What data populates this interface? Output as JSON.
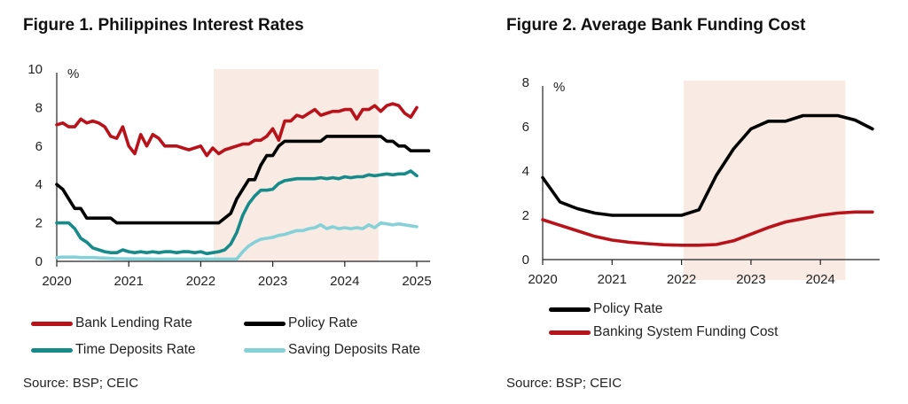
{
  "figures": [
    {
      "title": "Figure 1. Philippines Interest Rates",
      "source": "Source: BSP; CEIC",
      "legend": [
        {
          "label": "Bank Lending Rate",
          "color": "#b8121b"
        },
        {
          "label": "Policy Rate",
          "color": "#000000"
        },
        {
          "label": "Time Deposits Rate",
          "color": "#178a8a"
        },
        {
          "label": "Saving Deposits Rate",
          "color": "#86d1d8"
        }
      ]
    },
    {
      "title": "Figure 2. Average Bank Funding Cost",
      "source": "Source: BSP; CEIC",
      "legend": [
        {
          "label": "Policy Rate",
          "color": "#000000"
        },
        {
          "label": "Banking System Funding Cost",
          "color": "#b8121b"
        }
      ]
    }
  ],
  "chart_data": [
    {
      "type": "line",
      "title": "Figure 1. Philippines Interest Rates",
      "xlabel": "",
      "ylabel": "%",
      "frequency": "monthly",
      "x_start": "2020-01",
      "xlim": [
        2020,
        2025.25
      ],
      "ylim": [
        0,
        10
      ],
      "yticks": [
        0,
        2,
        4,
        6,
        8,
        10
      ],
      "xticks": [
        "2020",
        "2021",
        "2022",
        "2023",
        "2024",
        "2025"
      ],
      "grid": false,
      "legend_position": "bottom",
      "shaded_region": {
        "from": 2022.18,
        "to": 2024.47,
        "color": "#f9ebe3"
      },
      "series": [
        {
          "name": "Bank Lending Rate",
          "color": "#b8121b",
          "values": [
            7.1,
            7.2,
            7.0,
            7.0,
            7.4,
            7.2,
            7.3,
            7.2,
            7.0,
            6.5,
            6.4,
            7.0,
            6.0,
            5.6,
            6.6,
            6.0,
            6.6,
            6.4,
            6.0,
            6.0,
            6.0,
            5.9,
            5.8,
            5.9,
            6.0,
            5.5,
            5.9,
            5.6,
            5.8,
            5.9,
            6.0,
            6.1,
            6.1,
            6.3,
            6.3,
            6.5,
            6.9,
            6.3,
            7.3,
            7.3,
            7.6,
            7.5,
            7.7,
            7.9,
            7.6,
            7.7,
            7.8,
            7.8,
            7.9,
            7.9,
            7.4,
            7.9,
            7.9,
            8.1,
            7.8,
            8.1,
            8.2,
            8.1,
            7.7,
            7.5,
            8.0
          ]
        },
        {
          "name": "Policy Rate",
          "color": "#000000",
          "values": [
            4.0,
            3.75,
            3.25,
            2.75,
            2.75,
            2.25,
            2.25,
            2.25,
            2.25,
            2.25,
            2.0,
            2.0,
            2.0,
            2.0,
            2.0,
            2.0,
            2.0,
            2.0,
            2.0,
            2.0,
            2.0,
            2.0,
            2.0,
            2.0,
            2.0,
            2.0,
            2.0,
            2.0,
            2.25,
            2.5,
            3.25,
            3.75,
            4.25,
            4.25,
            5.0,
            5.5,
            5.5,
            6.0,
            6.25,
            6.25,
            6.25,
            6.25,
            6.25,
            6.25,
            6.25,
            6.5,
            6.5,
            6.5,
            6.5,
            6.5,
            6.5,
            6.5,
            6.5,
            6.5,
            6.5,
            6.25,
            6.25,
            6.0,
            6.0,
            5.75,
            5.75,
            5.75,
            5.75
          ]
        },
        {
          "name": "Time Deposits Rate",
          "color": "#178a8a",
          "values": [
            2.0,
            2.0,
            2.0,
            1.7,
            1.2,
            1.0,
            0.7,
            0.6,
            0.5,
            0.45,
            0.45,
            0.6,
            0.5,
            0.45,
            0.5,
            0.45,
            0.5,
            0.45,
            0.5,
            0.5,
            0.45,
            0.5,
            0.5,
            0.45,
            0.5,
            0.4,
            0.45,
            0.5,
            0.6,
            0.9,
            1.5,
            2.4,
            3.0,
            3.4,
            3.7,
            3.7,
            3.75,
            4.05,
            4.2,
            4.25,
            4.3,
            4.3,
            4.3,
            4.3,
            4.35,
            4.3,
            4.35,
            4.3,
            4.4,
            4.35,
            4.4,
            4.4,
            4.5,
            4.45,
            4.5,
            4.55,
            4.5,
            4.55,
            4.55,
            4.7,
            4.45
          ]
        },
        {
          "name": "Saving Deposits Rate",
          "color": "#86d1d8",
          "values": [
            0.2,
            0.22,
            0.22,
            0.22,
            0.2,
            0.2,
            0.2,
            0.18,
            0.17,
            0.15,
            0.14,
            0.14,
            0.13,
            0.13,
            0.13,
            0.13,
            0.12,
            0.12,
            0.12,
            0.12,
            0.12,
            0.12,
            0.12,
            0.12,
            0.12,
            0.12,
            0.12,
            0.12,
            0.12,
            0.12,
            0.12,
            0.5,
            0.8,
            1.0,
            1.15,
            1.2,
            1.25,
            1.35,
            1.4,
            1.5,
            1.6,
            1.6,
            1.7,
            1.75,
            1.9,
            1.7,
            1.8,
            1.7,
            1.75,
            1.7,
            1.75,
            1.7,
            1.9,
            1.75,
            2.0,
            1.95,
            1.9,
            1.95,
            1.9,
            1.85,
            1.8
          ]
        }
      ]
    },
    {
      "type": "line",
      "title": "Figure 2. Average Bank Funding Cost",
      "xlabel": "",
      "ylabel": "%",
      "frequency": "quarterly",
      "x_start": "2020-Q1",
      "xlim": [
        2020,
        2024.86
      ],
      "ylim": [
        0,
        8
      ],
      "yticks": [
        0,
        2,
        4,
        6,
        8
      ],
      "xticks": [
        "2020",
        "2021",
        "2022",
        "2023",
        "2024"
      ],
      "grid": false,
      "legend_position": "bottom",
      "shaded_region": {
        "from": 2022.03,
        "to": 2024.36,
        "color": "#f9ebe3"
      },
      "series": [
        {
          "name": "Policy Rate",
          "color": "#000000",
          "values": [
            3.7,
            2.6,
            2.3,
            2.1,
            2.0,
            2.0,
            2.0,
            2.0,
            2.0,
            2.25,
            3.8,
            5.0,
            5.9,
            6.25,
            6.25,
            6.5,
            6.5,
            6.5,
            6.3,
            5.9
          ]
        },
        {
          "name": "Banking System Funding Cost",
          "color": "#b8121b",
          "values": [
            1.8,
            1.55,
            1.3,
            1.05,
            0.88,
            0.78,
            0.72,
            0.67,
            0.65,
            0.65,
            0.68,
            0.85,
            1.15,
            1.45,
            1.7,
            1.85,
            2.0,
            2.1,
            2.15,
            2.15
          ]
        }
      ]
    }
  ]
}
